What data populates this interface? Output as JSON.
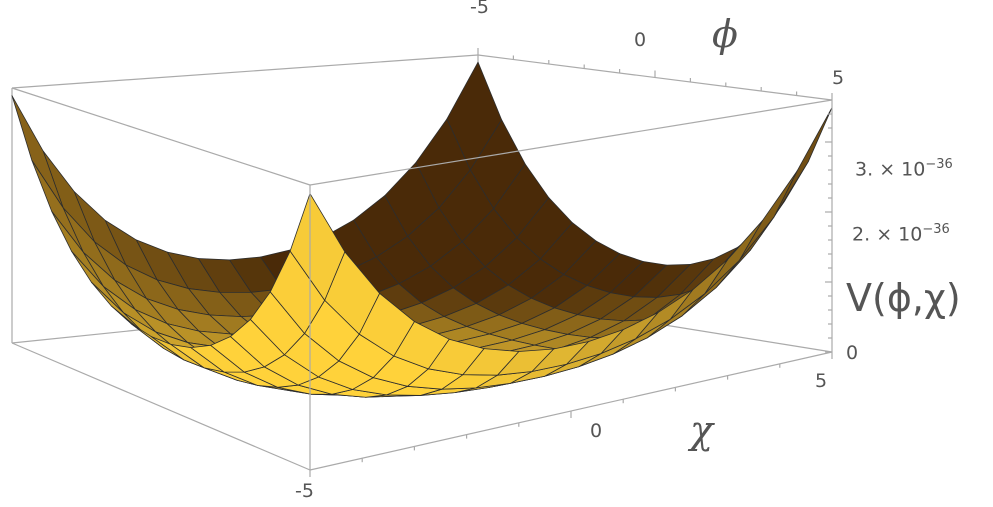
{
  "chart_data": {
    "type": "surface",
    "function_shape": "bowl with raised corners",
    "x_axis": {
      "label": "ϕ",
      "ticks": [
        "-5",
        "0",
        "5"
      ],
      "range": [
        -5,
        5
      ]
    },
    "y_axis": {
      "label": "χ",
      "ticks": [
        "-5",
        "0",
        "5"
      ],
      "range": [
        -5,
        5
      ]
    },
    "z_axis": {
      "label": "V(ϕ,χ)",
      "ticks": [
        {
          "value": 0,
          "text": "0"
        },
        {
          "value": 2e-36,
          "mantissa": "2.",
          "times": "×",
          "base": "10",
          "exp": "−36"
        },
        {
          "value": 3e-36,
          "mantissa": "3.",
          "times": "×",
          "base": "10",
          "exp": "−36"
        }
      ],
      "range": [
        0,
        3.6e-36
      ]
    },
    "colors": {
      "surface_light": "#ffd23a",
      "surface_dark": "#4a2a08",
      "mesh": "#2d2d2d",
      "box": "#aaaaaa"
    }
  }
}
